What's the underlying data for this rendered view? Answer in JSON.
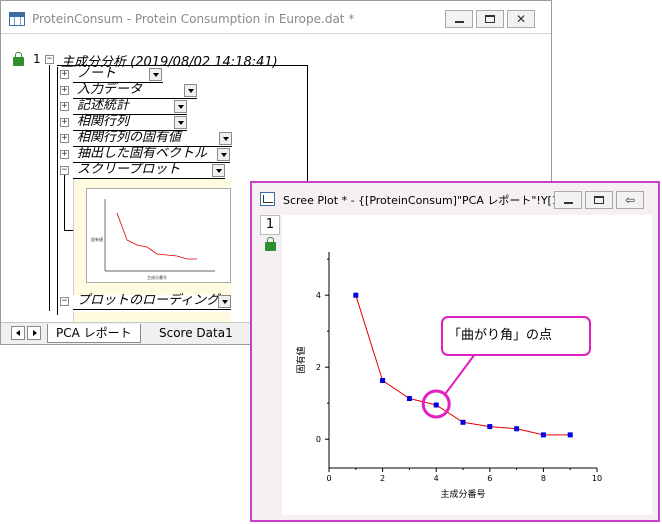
{
  "workbook": {
    "title": "ProteinConsum - Protein Consumption in Europe.dat *",
    "row_number": "1",
    "tree_head": "主成分分析 (2019/08/02 14:18:41)",
    "nodes": [
      {
        "label": "ノート"
      },
      {
        "label": "入力データ"
      },
      {
        "label": "記述統計"
      },
      {
        "label": "相関行列"
      },
      {
        "label": "相関行列の固有値"
      },
      {
        "label": "抽出した固有ベクトル"
      },
      {
        "label": "スクリープロット"
      },
      {
        "label": "プロットのローディング"
      }
    ],
    "tabs": {
      "active": "PCA レポート",
      "inactive": "Score Data1"
    },
    "winbuttons": {
      "minimize": "minimize",
      "maximize": "maximize",
      "close": "✕"
    }
  },
  "plot_window": {
    "title": "Scree Plot * - {[ProteinConsum]\"PCA レポート\"!Y[1:...",
    "layer": "1",
    "restore_glyph": "⇦"
  },
  "callout": {
    "text": "「曲がり角」の点"
  },
  "chart_data": {
    "type": "line",
    "title": "",
    "xlabel": "主成分番号",
    "ylabel": "固有値",
    "xlim": [
      0,
      10
    ],
    "ylim": [
      -0.8,
      5.2
    ],
    "xticks": [
      "0",
      "2",
      "4",
      "6",
      "8",
      "10"
    ],
    "yticks": [
      "0",
      "2",
      "4"
    ],
    "series": [
      {
        "x": [
          1,
          2,
          3,
          4,
          5,
          6,
          7,
          8,
          9
        ],
        "values": [
          4.0,
          1.63,
          1.13,
          0.95,
          0.47,
          0.35,
          0.29,
          0.12,
          0.12
        ],
        "line_color": "#e00000",
        "marker_color": "#0000e0"
      }
    ],
    "highlight_x": 4
  }
}
